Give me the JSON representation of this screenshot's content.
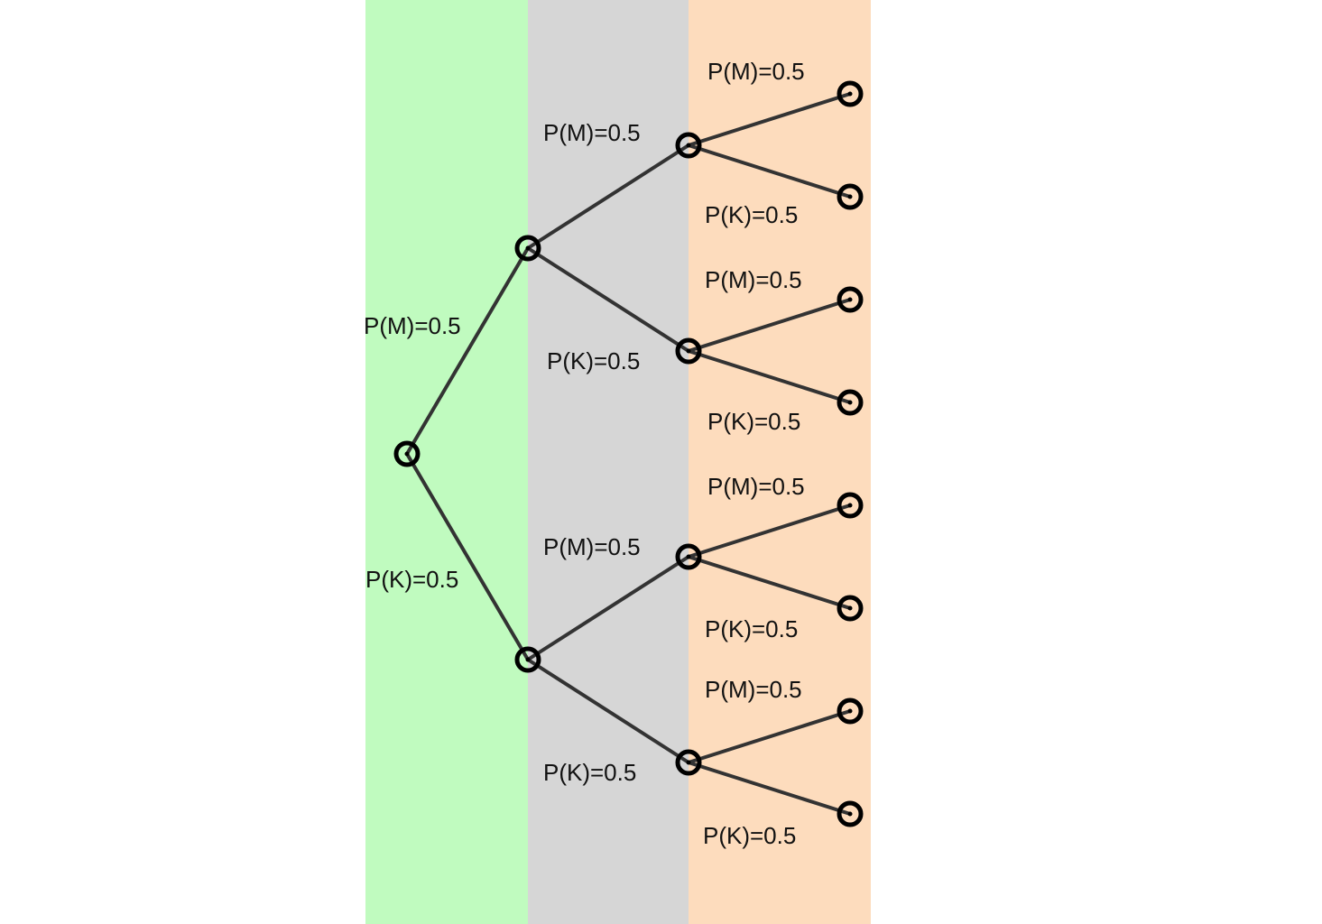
{
  "colors": {
    "stage1_band": "#c0fbbf",
    "stage2_band": "#d6d6d6",
    "stage3_band": "#fddcbd",
    "edge": "#333333",
    "node": "#000000"
  },
  "tree": {
    "stage1": {
      "m_label": "P(M)=0.5",
      "k_label": "P(K)=0.5"
    },
    "stage2": {
      "m_branch": {
        "m_label": "P(M)=0.5",
        "k_label": "P(K)=0.5"
      },
      "k_branch": {
        "m_label": "P(M)=0.5",
        "k_label": "P(K)=0.5"
      }
    },
    "stage3": {
      "mm": {
        "m_label": "P(M)=0.5",
        "k_label": "P(K)=0.5"
      },
      "mk": {
        "m_label": "P(M)=0.5",
        "k_label": "P(K)=0.5"
      },
      "km": {
        "m_label": "P(M)=0.5",
        "k_label": "P(K)=0.5"
      },
      "kk": {
        "m_label": "P(M)=0.5",
        "k_label": "P(K)=0.5"
      }
    }
  }
}
